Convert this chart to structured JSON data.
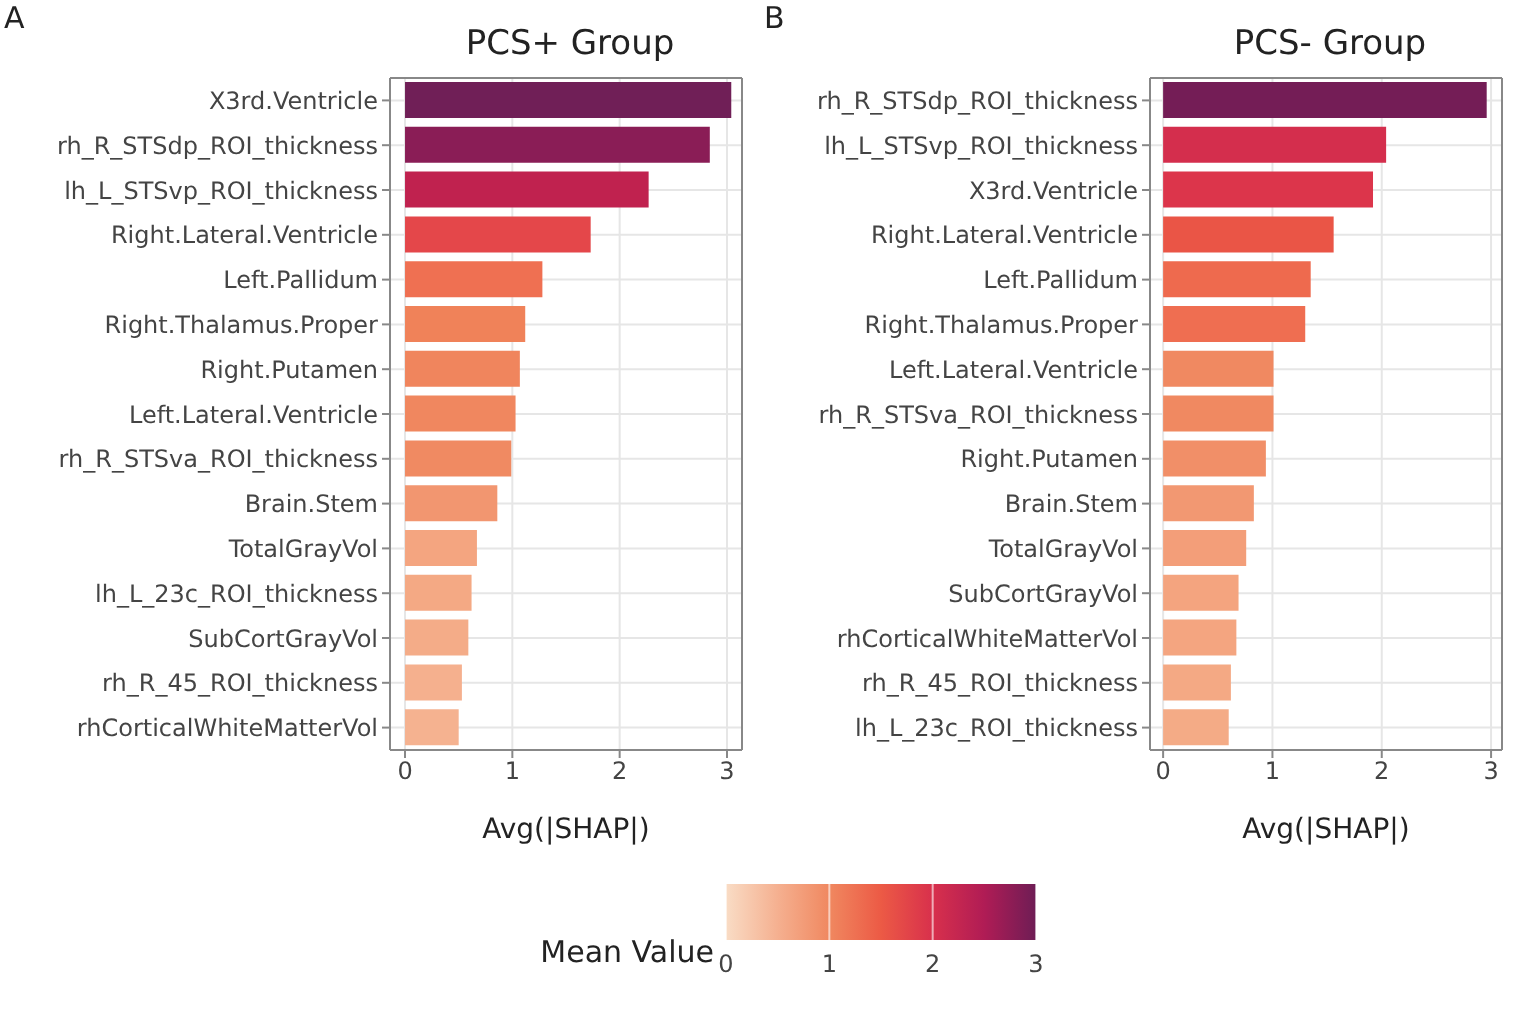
{
  "chart_data": [
    {
      "type": "bar",
      "orientation": "horizontal",
      "title": "PCS+ Group",
      "xlabel": "Avg(|SHAP|)",
      "annotations": [
        "A"
      ],
      "grid": true,
      "categories": [
        "X3rd.Ventricle",
        "rh_R_STSdp_ROI_thickness",
        "lh_L_STSvp_ROI_thickness",
        "Right.Lateral.Ventricle",
        "Left.Pallidum",
        "Right.Thalamus.Proper",
        "Right.Putamen",
        "Left.Lateral.Ventricle",
        "rh_R_STSva_ROI_thickness",
        "Brain.Stem",
        "TotalGrayVol",
        "lh_L_23c_ROI_thickness",
        "SubCortGrayVol",
        "rh_R_45_ROI_thickness",
        "rhCorticalWhiteMatterVol"
      ],
      "values": [
        3.04,
        2.84,
        2.27,
        1.73,
        1.28,
        1.12,
        1.07,
        1.03,
        0.99,
        0.86,
        0.67,
        0.62,
        0.59,
        0.53,
        0.5
      ],
      "colors": [
        "#701f57",
        "#8a1d56",
        "#c0224f",
        "#e4474a",
        "#ef7052",
        "#f08259",
        "#f0855d",
        "#f0875f",
        "#f08a62",
        "#f29670",
        "#f4a580",
        "#f4a984",
        "#f4ac88",
        "#f5b08e",
        "#f5b290"
      ],
      "xlim": [
        -0.14,
        3.14
      ],
      "xticks": [
        0,
        1,
        2,
        3
      ],
      "clabel": "Mean Value",
      "clim": [
        0,
        3
      ],
      "cticks": [
        0,
        1,
        2,
        3
      ]
    },
    {
      "type": "bar",
      "orientation": "horizontal",
      "title": "PCS- Group",
      "xlabel": "Avg(|SHAP|)",
      "annotations": [
        "B"
      ],
      "grid": true,
      "categories": [
        "rh_R_STSdp_ROI_thickness",
        "lh_L_STSvp_ROI_thickness",
        "X3rd.Ventricle",
        "Right.Lateral.Ventricle",
        "Left.Pallidum",
        "Right.Thalamus.Proper",
        "Left.Lateral.Ventricle",
        "rh_R_STSva_ROI_thickness",
        "Right.Putamen",
        "Brain.Stem",
        "TotalGrayVol",
        "SubCortGrayVol",
        "rhCorticalWhiteMatterVol",
        "rh_R_45_ROI_thickness",
        "lh_L_23c_ROI_thickness"
      ],
      "values": [
        2.96,
        2.04,
        1.92,
        1.56,
        1.35,
        1.3,
        1.01,
        1.01,
        0.94,
        0.83,
        0.76,
        0.69,
        0.67,
        0.62,
        0.6
      ],
      "colors": [
        "#741d56",
        "#d42e4d",
        "#dc354b",
        "#ea5546",
        "#ee6a4e",
        "#ef6e51",
        "#f08961",
        "#f08961",
        "#f18f68",
        "#f29872",
        "#f39e79",
        "#f4a47f",
        "#f4a580",
        "#f4a984",
        "#f4ab86"
      ],
      "xlim": [
        -0.12,
        3.1
      ],
      "xticks": [
        0,
        1,
        2,
        3
      ]
    }
  ]
}
